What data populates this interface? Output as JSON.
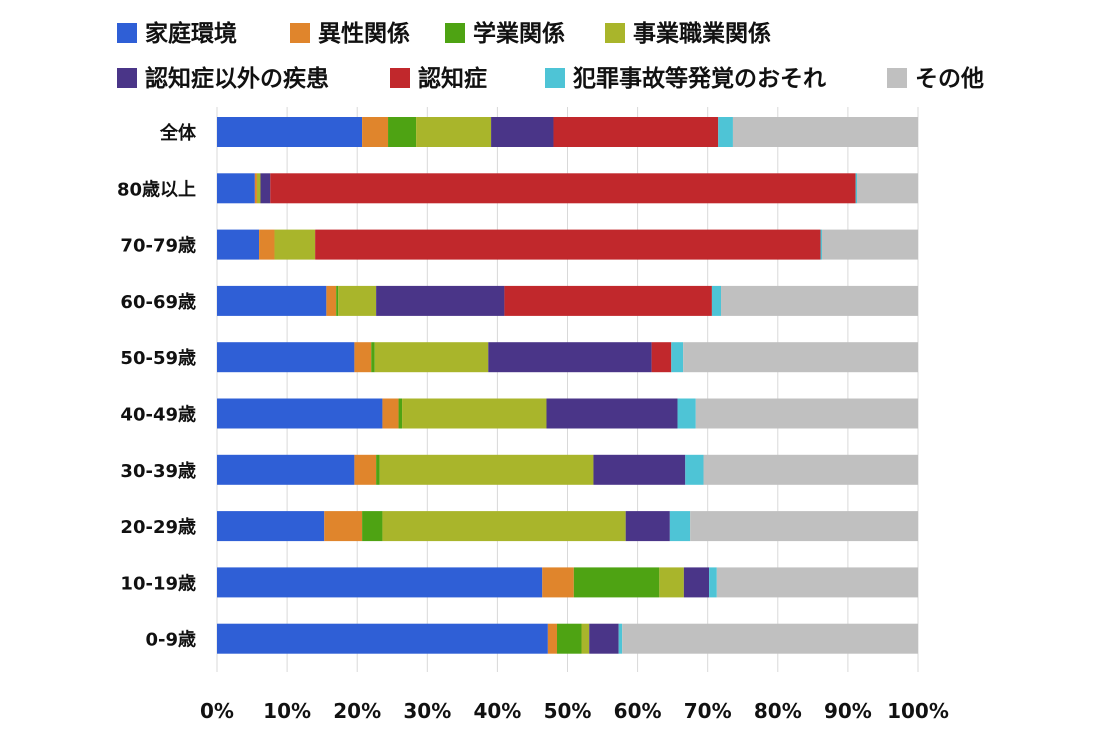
{
  "chart_data": {
    "type": "bar",
    "orientation": "horizontal",
    "stacked": "percent",
    "categories": [
      "全体",
      "80歳以上",
      "70-79歳",
      "60-69歳",
      "50-59歳",
      "40-49歳",
      "30-39歳",
      "20-29歳",
      "10-19歳",
      "0-9歳"
    ],
    "series": [
      {
        "name": "家庭環境",
        "color": "#2f5fd6",
        "values": [
          20.7,
          5.4,
          6.0,
          15.6,
          19.6,
          23.6,
          19.6,
          15.3,
          46.4,
          47.2
        ]
      },
      {
        "name": "異性関係",
        "color": "#e0852c",
        "values": [
          3.7,
          0.3,
          2.2,
          1.4,
          2.4,
          2.3,
          3.1,
          5.4,
          4.5,
          1.3
        ]
      },
      {
        "name": "学業関係",
        "color": "#4ea313",
        "values": [
          4.0,
          0.0,
          0.0,
          0.3,
          0.5,
          0.5,
          0.5,
          2.9,
          12.2,
          3.5
        ]
      },
      {
        "name": "事業職業関係",
        "color": "#a9b52b",
        "values": [
          10.7,
          0.5,
          5.8,
          5.4,
          16.2,
          20.6,
          30.5,
          34.7,
          3.5,
          1.1
        ]
      },
      {
        "name": "認知症以外の疾患",
        "color": "#4a3588",
        "values": [
          8.9,
          1.4,
          0.0,
          18.3,
          23.3,
          18.7,
          13.1,
          6.3,
          3.6,
          4.2
        ]
      },
      {
        "name": "認知症",
        "color": "#c1282c",
        "values": [
          23.5,
          83.5,
          72.1,
          29.6,
          2.8,
          0.0,
          0.0,
          0.0,
          0.0,
          0.0
        ]
      },
      {
        "name": "犯罪事故等発覚のおそれ",
        "color": "#4ec4d6",
        "values": [
          2.1,
          0.2,
          0.2,
          1.3,
          1.7,
          2.6,
          2.6,
          2.9,
          1.1,
          0.5
        ]
      },
      {
        "name": "その他",
        "color": "#c0c0c0",
        "values": [
          26.4,
          8.7,
          13.7,
          28.1,
          33.5,
          31.7,
          30.6,
          32.5,
          28.7,
          42.2
        ]
      }
    ],
    "xlim": [
      0,
      100
    ],
    "xticks": [
      "0%",
      "10%",
      "20%",
      "30%",
      "40%",
      "50%",
      "60%",
      "70%",
      "80%",
      "90%",
      "100%"
    ],
    "legend_position": "top",
    "grid": "vertical"
  }
}
